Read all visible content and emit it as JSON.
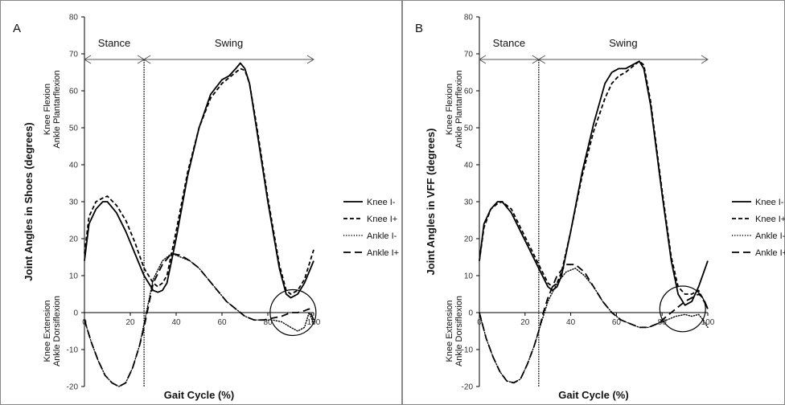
{
  "chart_data": [
    {
      "type": "line",
      "panel_label": "A",
      "ylabel": "Joint Angles in Shoes (degrees)",
      "xlabel": "Gait Cycle (%)",
      "upper_side_label": [
        "Knee Flexion",
        "Ankle Plantarflexion"
      ],
      "lower_side_label": [
        "Knee Extension",
        "Ankle Dorsiflexion"
      ],
      "xlim": [
        0,
        100
      ],
      "ylim": [
        -20,
        80
      ],
      "xticks": [
        "0",
        "20",
        "40",
        "60",
        "80",
        "100"
      ],
      "yticks": [
        "-20",
        "-10",
        "0",
        "10",
        "20",
        "30",
        "40",
        "50",
        "60",
        "70",
        "80"
      ],
      "phases": [
        {
          "label": "Stance",
          "start": 0,
          "end": 26
        },
        {
          "label": "Swing",
          "start": 26,
          "end": 100
        }
      ],
      "divider_x": 26,
      "highlight": {
        "cx": 91,
        "cy": 0,
        "r": 10
      },
      "series": [
        {
          "name": "Knee I-",
          "style": "solid",
          "x": [
            0,
            2,
            5,
            8,
            10,
            14,
            18,
            22,
            26,
            30,
            32,
            34,
            36,
            40,
            45,
            50,
            55,
            60,
            63,
            66,
            68,
            70,
            72,
            75,
            80,
            85,
            88,
            90,
            93,
            96,
            100
          ],
          "y": [
            14,
            24,
            28,
            30,
            30,
            27,
            22,
            16,
            10,
            6,
            5.5,
            6,
            8,
            20,
            37,
            50,
            59,
            63,
            64,
            66,
            67.5,
            66,
            62,
            50,
            30,
            12,
            5,
            4,
            5,
            8,
            14
          ]
        },
        {
          "name": "Knee I+",
          "style": "dashed",
          "x": [
            0,
            2,
            5,
            8,
            10,
            14,
            18,
            22,
            26,
            30,
            32,
            34,
            36,
            40,
            45,
            50,
            55,
            60,
            63,
            66,
            68,
            70,
            72,
            75,
            80,
            85,
            88,
            90,
            93,
            96,
            100
          ],
          "y": [
            16,
            26,
            30,
            31,
            31.5,
            29,
            25,
            19,
            12,
            8,
            7,
            8,
            10,
            22,
            38,
            50,
            58,
            62,
            63.5,
            65,
            66,
            65.5,
            62,
            51,
            31,
            13,
            6,
            5,
            6,
            9,
            17
          ]
        },
        {
          "name": "Ankle I-",
          "style": "dotted",
          "x": [
            0,
            3,
            6,
            9,
            12,
            15,
            18,
            21,
            24,
            26,
            28,
            30,
            34,
            38,
            42,
            46,
            50,
            54,
            58,
            62,
            66,
            70,
            74,
            78,
            82,
            86,
            90,
            93,
            96,
            98,
            100
          ],
          "y": [
            -2,
            -8,
            -13,
            -17,
            -19,
            -20,
            -19,
            -15,
            -9,
            -3,
            3,
            9,
            14,
            16,
            15,
            14,
            12,
            9,
            6,
            3,
            1,
            -1,
            -2,
            -2,
            -2,
            -2.5,
            -4,
            -5,
            -4,
            0,
            -3
          ]
        },
        {
          "name": "Ankle I+",
          "style": "longdash",
          "x": [
            0,
            3,
            6,
            9,
            12,
            15,
            18,
            21,
            24,
            26,
            28,
            30,
            34,
            38,
            42,
            46,
            50,
            54,
            58,
            62,
            66,
            70,
            74,
            78,
            82,
            86,
            90,
            93,
            96,
            98,
            100
          ],
          "y": [
            -2,
            -8,
            -13,
            -17,
            -19,
            -20,
            -19,
            -15,
            -9,
            -4,
            2,
            8,
            13,
            16,
            15.5,
            14,
            12,
            9,
            6,
            3,
            1,
            -1,
            -2,
            -2,
            -1.5,
            -1,
            0,
            0,
            0.5,
            1,
            -2
          ]
        }
      ]
    },
    {
      "type": "line",
      "panel_label": "B",
      "ylabel": "Joint Angles in VFF (degrees)",
      "xlabel": "Gait Cycle (%)",
      "upper_side_label": [
        "Knee Flexion",
        "Ankle Plantarflexion"
      ],
      "lower_side_label": [
        "Knee Extension",
        "Ankle Dorsiflexion"
      ],
      "xlim": [
        0,
        100
      ],
      "ylim": [
        -20,
        80
      ],
      "xticks": [
        "0",
        "20",
        "40",
        "60",
        "80",
        "100"
      ],
      "yticks": [
        "-20",
        "-10",
        "0",
        "10",
        "20",
        "30",
        "40",
        "50",
        "60",
        "70",
        "80"
      ],
      "phases": [
        {
          "label": "Stance",
          "start": 0,
          "end": 26
        },
        {
          "label": "Swing",
          "start": 26,
          "end": 100
        }
      ],
      "divider_x": 26,
      "highlight": {
        "cx": 89,
        "cy": 1,
        "r": 10
      },
      "series": [
        {
          "name": "Knee I-",
          "style": "solid",
          "x": [
            0,
            2,
            5,
            8,
            10,
            14,
            18,
            22,
            26,
            30,
            32,
            34,
            36,
            40,
            45,
            50,
            55,
            58,
            61,
            64,
            67,
            70,
            72,
            75,
            80,
            84,
            87,
            90,
            93,
            96,
            100
          ],
          "y": [
            14,
            24,
            28,
            30,
            30,
            27,
            22,
            17,
            12,
            7,
            6,
            7,
            10,
            22,
            38,
            51,
            62,
            65,
            66,
            66,
            67,
            68,
            66,
            56,
            32,
            14,
            5,
            2,
            3,
            7,
            14
          ]
        },
        {
          "name": "Knee I+",
          "style": "dashed",
          "x": [
            0,
            2,
            5,
            8,
            10,
            14,
            18,
            22,
            26,
            30,
            32,
            34,
            36,
            40,
            45,
            50,
            55,
            58,
            61,
            64,
            67,
            70,
            72,
            75,
            80,
            84,
            87,
            90,
            93,
            96,
            100
          ],
          "y": [
            14,
            23,
            28,
            29.5,
            30,
            28,
            23,
            18,
            13,
            8,
            7,
            8,
            11,
            22,
            37,
            49,
            58,
            62,
            64,
            65,
            66.5,
            68,
            67,
            57,
            33,
            15,
            7,
            5,
            5,
            6,
            1
          ]
        },
        {
          "name": "Ankle I-",
          "style": "dotted",
          "x": [
            0,
            3,
            6,
            9,
            12,
            15,
            18,
            21,
            24,
            26,
            28,
            30,
            34,
            38,
            42,
            46,
            50,
            54,
            58,
            62,
            66,
            70,
            74,
            78,
            82,
            86,
            90,
            93,
            96,
            98,
            100
          ],
          "y": [
            0,
            -7,
            -12,
            -16,
            -18.5,
            -19,
            -18,
            -14,
            -9,
            -5,
            -1,
            3,
            8,
            11,
            12,
            10,
            7,
            3,
            0,
            -2,
            -3,
            -4,
            -4,
            -3,
            -2,
            -1,
            -0.5,
            -1,
            -0.5,
            -2,
            -4
          ]
        },
        {
          "name": "Ankle I+",
          "style": "longdash",
          "x": [
            0,
            3,
            6,
            9,
            12,
            15,
            18,
            21,
            24,
            26,
            28,
            30,
            34,
            38,
            42,
            46,
            50,
            54,
            58,
            62,
            66,
            70,
            74,
            78,
            82,
            86,
            90,
            93,
            96,
            98,
            100
          ],
          "y": [
            0,
            -7,
            -12,
            -16,
            -18.5,
            -19,
            -18,
            -14,
            -9,
            -5,
            0,
            4,
            10,
            13,
            13,
            11,
            7,
            3,
            0,
            -2,
            -3,
            -4,
            -4,
            -3,
            -1,
            1,
            3,
            4,
            5,
            4,
            1
          ]
        }
      ]
    }
  ],
  "legend": {
    "placement": "right",
    "entries": [
      {
        "name": "Knee I-",
        "style": "solid"
      },
      {
        "name": "Knee I+",
        "style": "dashed"
      },
      {
        "name": "Ankle I-",
        "style": "dotted"
      },
      {
        "name": "Ankle I+",
        "style": "longdash"
      }
    ]
  },
  "colors": {
    "line": "#000000",
    "border": "#888888"
  }
}
